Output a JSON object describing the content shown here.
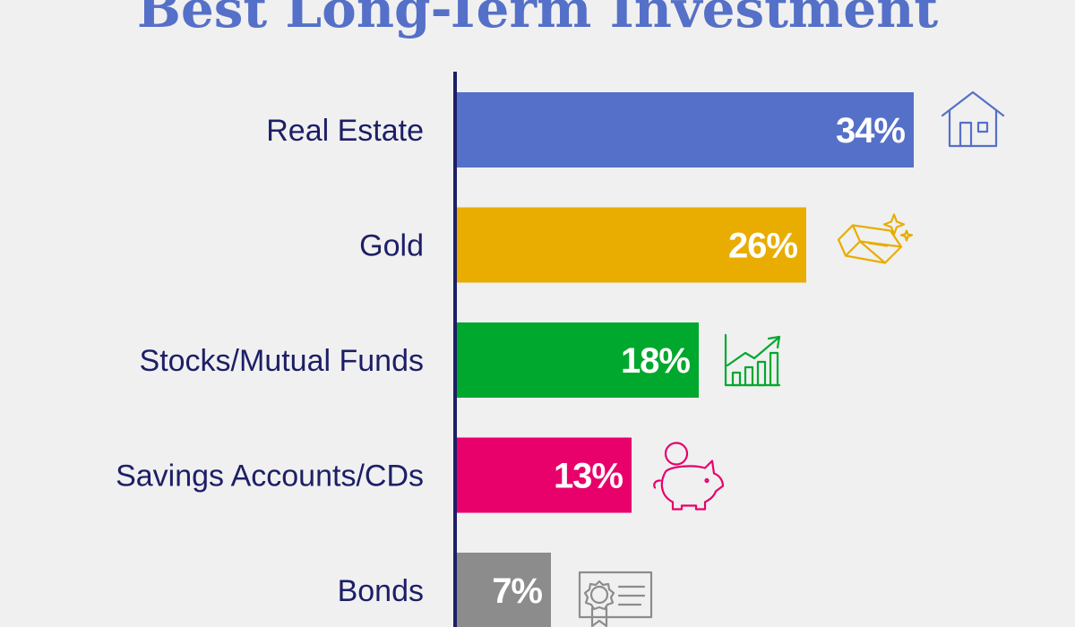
{
  "chart_data": {
    "type": "bar",
    "orientation": "horizontal",
    "title": "Best Long-Term Investment",
    "categories": [
      "Real Estate",
      "Gold",
      "Stocks/Mutual Funds",
      "Savings Accounts/CDs",
      "Bonds"
    ],
    "values": [
      34,
      26,
      18,
      13,
      7
    ],
    "value_labels": [
      "34%",
      "26%",
      "18%",
      "13%",
      "7%"
    ],
    "unit": "%",
    "bar_colors": [
      "#5570c8",
      "#e8ad00",
      "#00a82d",
      "#e8006b",
      "#8c8c8c"
    ],
    "icons": [
      "house-icon",
      "gold-bar-icon",
      "growth-chart-icon",
      "piggy-bank-icon",
      "certificate-icon"
    ],
    "xlim": [
      0,
      34
    ],
    "grid": false,
    "legend": "none"
  },
  "colors": {
    "background": "#f0f0f0",
    "title": "#5570c8",
    "axis": "#1c1f66",
    "category_text": "#1c1f66",
    "value_text": "#ffffff"
  }
}
